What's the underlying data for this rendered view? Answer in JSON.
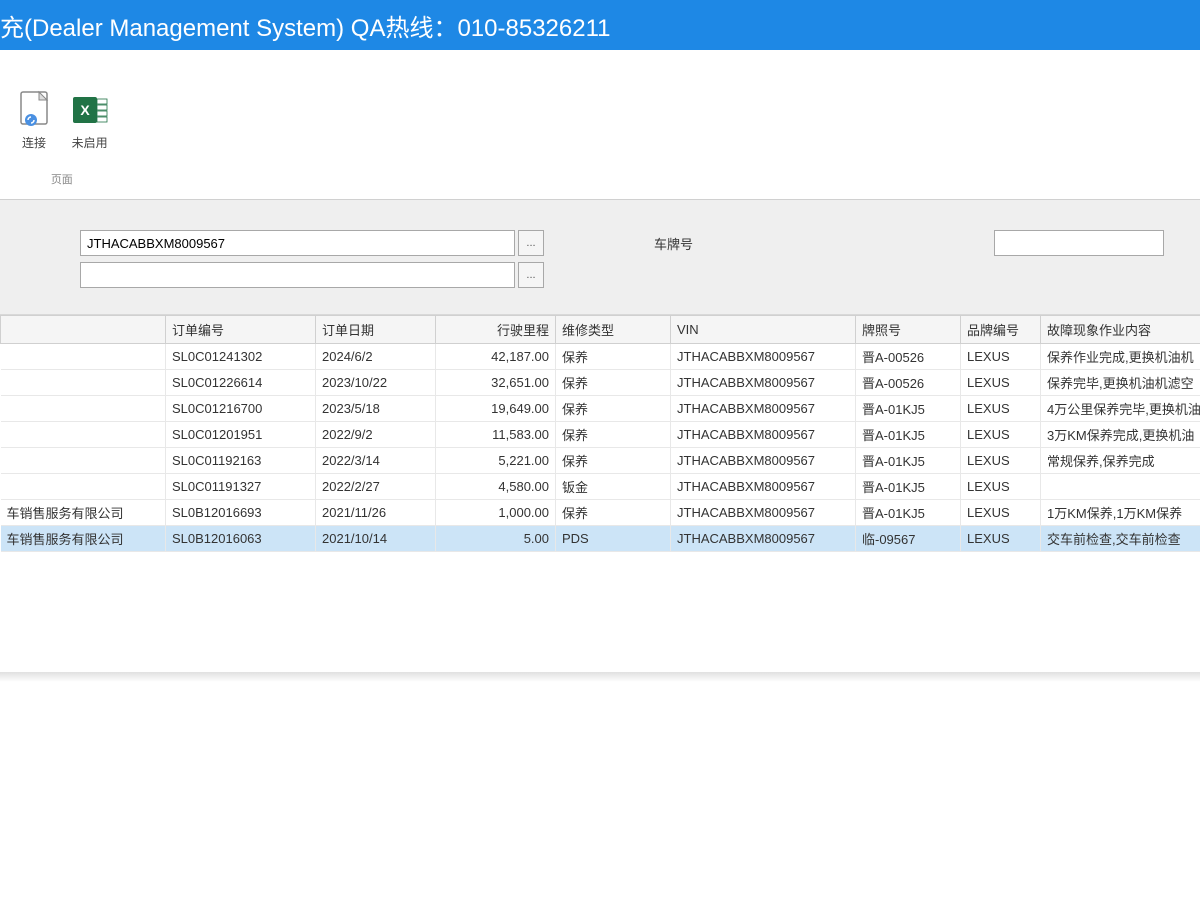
{
  "titlebar": {
    "text": "充(Dealer Management System) QA热线：010-85326211"
  },
  "ribbon": {
    "link_label": "连接",
    "excel_label": "未启用",
    "group_label": "页面"
  },
  "filter": {
    "vin_value": "JTHACABBXM8009567",
    "second_value": "",
    "plate_label": "车牌号",
    "plate_value": "",
    "lookup": "..."
  },
  "table": {
    "headers": {
      "dealer": "",
      "order_no": "订单编号",
      "order_date": "订单日期",
      "mileage": "行驶里程",
      "maint_type": "维修类型",
      "vin": "VIN",
      "plate": "牌照号",
      "brand": "品牌编号",
      "desc": "故障现象作业内容"
    },
    "rows": [
      {
        "dealer": "",
        "order_no": "SL0C01241302",
        "order_date": "2024/6/2",
        "mileage": "42,187.00",
        "maint_type": "保养",
        "vin": "JTHACABBXM8009567",
        "plate": "晋A-00526",
        "brand": "LEXUS",
        "desc": "保养作业完成,更换机油机"
      },
      {
        "dealer": "",
        "order_no": "SL0C01226614",
        "order_date": "2023/10/22",
        "mileage": "32,651.00",
        "maint_type": "保养",
        "vin": "JTHACABBXM8009567",
        "plate": "晋A-00526",
        "brand": "LEXUS",
        "desc": "保养完毕,更换机油机滤空"
      },
      {
        "dealer": "",
        "order_no": "SL0C01216700",
        "order_date": "2023/5/18",
        "mileage": "19,649.00",
        "maint_type": "保养",
        "vin": "JTHACABBXM8009567",
        "plate": "晋A-01KJ5",
        "brand": "LEXUS",
        "desc": "4万公里保养完毕,更换机油"
      },
      {
        "dealer": "",
        "order_no": "SL0C01201951",
        "order_date": "2022/9/2",
        "mileage": "11,583.00",
        "maint_type": "保养",
        "vin": "JTHACABBXM8009567",
        "plate": "晋A-01KJ5",
        "brand": "LEXUS",
        "desc": "3万KM保养完成,更换机油"
      },
      {
        "dealer": "",
        "order_no": "SL0C01192163",
        "order_date": "2022/3/14",
        "mileage": "5,221.00",
        "maint_type": "保养",
        "vin": "JTHACABBXM8009567",
        "plate": "晋A-01KJ5",
        "brand": "LEXUS",
        "desc": "常规保养,保养完成"
      },
      {
        "dealer": "",
        "order_no": "SL0C01191327",
        "order_date": "2022/2/27",
        "mileage": "4,580.00",
        "maint_type": "钣金",
        "vin": "JTHACABBXM8009567",
        "plate": "晋A-01KJ5",
        "brand": "LEXUS",
        "desc": ""
      },
      {
        "dealer": "车销售服务有限公司",
        "order_no": "SL0B12016693",
        "order_date": "2021/11/26",
        "mileage": "1,000.00",
        "maint_type": "保养",
        "vin": "JTHACABBXM8009567",
        "plate": "晋A-01KJ5",
        "brand": "LEXUS",
        "desc": "1万KM保养,1万KM保养"
      },
      {
        "dealer": "车销售服务有限公司",
        "order_no": "SL0B12016063",
        "order_date": "2021/10/14",
        "mileage": "5.00",
        "maint_type": "PDS",
        "vin": "JTHACABBXM8009567",
        "plate": "临-09567",
        "brand": "LEXUS",
        "desc": "交车前检查,交车前检查",
        "selected": true
      }
    ]
  },
  "colors": {
    "titlebar_bg": "#1e88e5",
    "selected_row": "#cce4f7",
    "filter_bg": "#efefef",
    "excel_green": "#217346"
  }
}
